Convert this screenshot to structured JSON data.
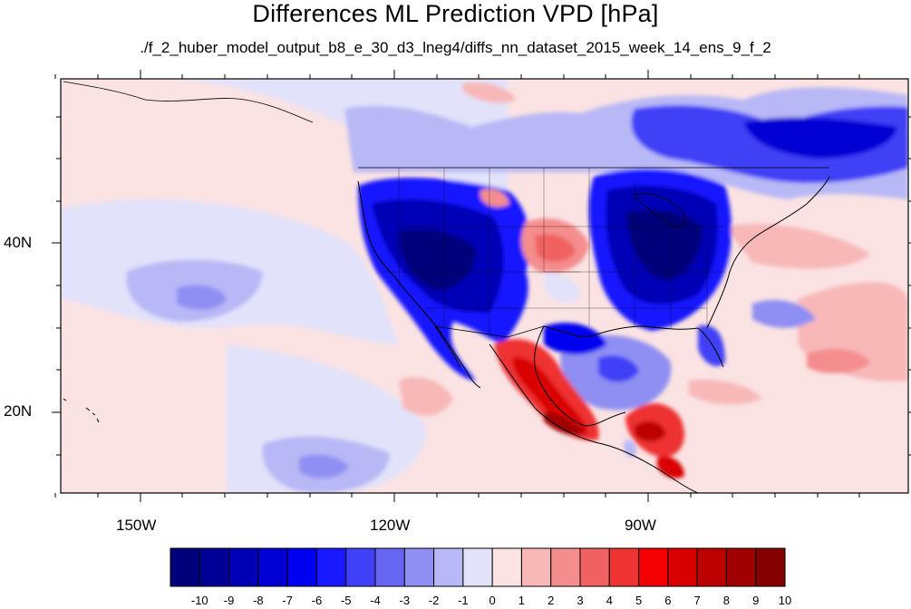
{
  "title": "Differences ML Prediction VPD [hPa]",
  "subtitle": "./f_2_huber_model_output_b8_e_30_d3_lneg4/diffs_nn_dataset_2015_week_14_ens_9_f_2",
  "axes": {
    "lon_labels": [
      "150W",
      "120W",
      "90W"
    ],
    "lat_labels": [
      "40N",
      "20N"
    ]
  },
  "colorbar": {
    "labels": [
      "-10",
      "-9",
      "-8",
      "-7",
      "-6",
      "-5",
      "-4",
      "-3",
      "-2",
      "-1",
      "0",
      "1",
      "2",
      "3",
      "4",
      "5",
      "6",
      "7",
      "8",
      "9",
      "10"
    ],
    "colors": [
      "#00007a",
      "#000097",
      "#0000b6",
      "#0000d4",
      "#0000f0",
      "#1919ff",
      "#4040f6",
      "#6666f2",
      "#8f8ff3",
      "#b8b8f6",
      "#e2e2fa",
      "#fbe3e3",
      "#f8b8b8",
      "#f48d8d",
      "#f06262",
      "#ee3333",
      "#f50000",
      "#d80000",
      "#bc0000",
      "#a00000",
      "#850000"
    ]
  }
}
